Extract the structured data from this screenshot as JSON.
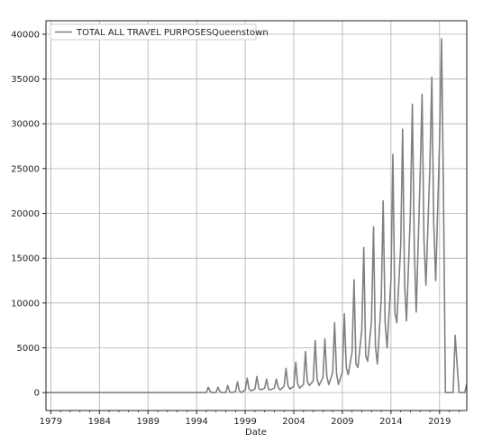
{
  "chart_data": {
    "type": "line",
    "xlabel": "Date",
    "ylabel": "",
    "xlim": [
      1978.5,
      2021.8
    ],
    "ylim": [
      -2000,
      41500
    ],
    "x_ticks": [
      1979,
      1984,
      1989,
      1994,
      1999,
      2004,
      2009,
      2014,
      2019
    ],
    "y_ticks": [
      0,
      5000,
      10000,
      15000,
      20000,
      25000,
      30000,
      35000,
      40000
    ],
    "grid": true,
    "legend_position": "top-left",
    "series": [
      {
        "name": "TOTAL ALL TRAVEL PURPOSESQueenstown",
        "color": "#808080",
        "x": [
          1978.5,
          1995.0,
          1995.2,
          1995.4,
          1995.6,
          1996.0,
          1996.2,
          1996.4,
          1996.6,
          1997.0,
          1997.2,
          1997.4,
          1997.6,
          1998.0,
          1998.2,
          1998.4,
          1998.6,
          1999.0,
          1999.2,
          1999.4,
          1999.6,
          2000.0,
          2000.2,
          2000.4,
          2000.6,
          2001.0,
          2001.2,
          2001.4,
          2001.6,
          2002.0,
          2002.2,
          2002.4,
          2002.6,
          2003.0,
          2003.2,
          2003.4,
          2003.6,
          2004.0,
          2004.2,
          2004.4,
          2004.6,
          2005.0,
          2005.2,
          2005.4,
          2005.6,
          2006.0,
          2006.2,
          2006.4,
          2006.6,
          2007.0,
          2007.2,
          2007.4,
          2007.6,
          2008.0,
          2008.2,
          2008.4,
          2008.6,
          2009.0,
          2009.2,
          2009.4,
          2009.6,
          2010.0,
          2010.2,
          2010.4,
          2010.6,
          2011.0,
          2011.2,
          2011.4,
          2011.6,
          2012.0,
          2012.2,
          2012.4,
          2012.6,
          2013.0,
          2013.2,
          2013.4,
          2013.6,
          2014.0,
          2014.2,
          2014.4,
          2014.6,
          2015.0,
          2015.2,
          2015.4,
          2015.6,
          2016.0,
          2016.2,
          2016.4,
          2016.6,
          2017.0,
          2017.2,
          2017.4,
          2017.6,
          2018.0,
          2018.2,
          2018.4,
          2018.6,
          2019.0,
          2019.2,
          2019.4,
          2019.6,
          2020.0,
          2020.2,
          2020.4,
          2020.6,
          2021.0,
          2021.2,
          2021.4,
          2021.6,
          2021.8
        ],
        "y": [
          0,
          0,
          600,
          100,
          0,
          0,
          600,
          100,
          0,
          0,
          800,
          100,
          0,
          100,
          1200,
          200,
          0,
          300,
          1600,
          400,
          200,
          400,
          1800,
          500,
          300,
          500,
          1500,
          400,
          300,
          500,
          1500,
          600,
          300,
          700,
          2700,
          800,
          400,
          700,
          3400,
          1000,
          500,
          900,
          4600,
          1200,
          800,
          1300,
          5800,
          1500,
          800,
          1700,
          6000,
          1800,
          900,
          2200,
          7800,
          2100,
          900,
          2300,
          8800,
          2800,
          2000,
          4500,
          12600,
          3200,
          2800,
          7000,
          16200,
          4100,
          3500,
          8000,
          18500,
          5200,
          3200,
          10500,
          21400,
          7800,
          5000,
          12700,
          26600,
          9000,
          7800,
          16400,
          29400,
          12000,
          8000,
          20000,
          32200,
          16000,
          9000,
          24000,
          33300,
          17000,
          12000,
          25000,
          35200,
          19000,
          12500,
          28000,
          39500,
          22500,
          0,
          0,
          0,
          0,
          6400,
          0,
          0,
          0,
          0,
          1000
        ]
      }
    ]
  }
}
